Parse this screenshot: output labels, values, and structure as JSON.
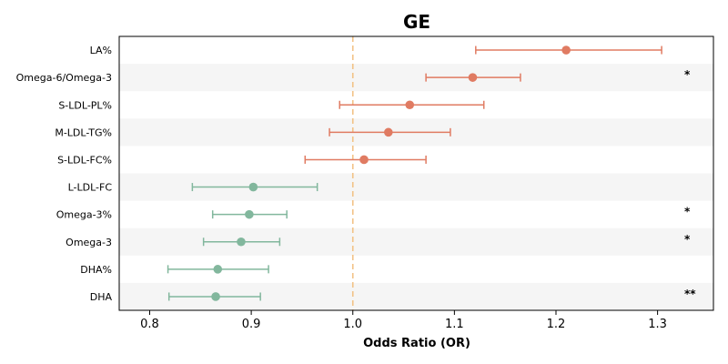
{
  "chart_data": {
    "type": "forest",
    "title": "GE",
    "xlabel": "Odds Ratio (OR)",
    "xlim": [
      0.77,
      1.355
    ],
    "xticks": [
      0.8,
      0.9,
      1.0,
      1.1,
      1.2,
      1.3
    ],
    "xtick_labels": [
      "0.8",
      "0.9",
      "1.0",
      "1.1",
      "1.2",
      "1.3"
    ],
    "reference_line": 1.0,
    "colors": {
      "positive": "#e07b62",
      "negative": "#82b79d",
      "reference": "#f2c285",
      "band": "#f5f5f5"
    },
    "rows": [
      {
        "label": "LA%",
        "or": 1.21,
        "lo": 1.121,
        "hi": 1.304,
        "sig": ""
      },
      {
        "label": "Omega-6/Omega-3",
        "or": 1.118,
        "lo": 1.072,
        "hi": 1.165,
        "sig": "*"
      },
      {
        "label": "S-LDL-PL%",
        "or": 1.056,
        "lo": 0.987,
        "hi": 1.129,
        "sig": ""
      },
      {
        "label": "M-LDL-TG%",
        "or": 1.035,
        "lo": 0.977,
        "hi": 1.096,
        "sig": ""
      },
      {
        "label": "S-LDL-FC%",
        "or": 1.011,
        "lo": 0.953,
        "hi": 1.072,
        "sig": ""
      },
      {
        "label": "L-LDL-FC",
        "or": 0.902,
        "lo": 0.842,
        "hi": 0.965,
        "sig": ""
      },
      {
        "label": "Omega-3%",
        "or": 0.898,
        "lo": 0.862,
        "hi": 0.935,
        "sig": "*"
      },
      {
        "label": "Omega-3",
        "or": 0.89,
        "lo": 0.853,
        "hi": 0.928,
        "sig": "*"
      },
      {
        "label": "DHA%",
        "or": 0.867,
        "lo": 0.818,
        "hi": 0.917,
        "sig": ""
      },
      {
        "label": "DHA",
        "or": 0.865,
        "lo": 0.819,
        "hi": 0.909,
        "sig": "**"
      }
    ]
  }
}
